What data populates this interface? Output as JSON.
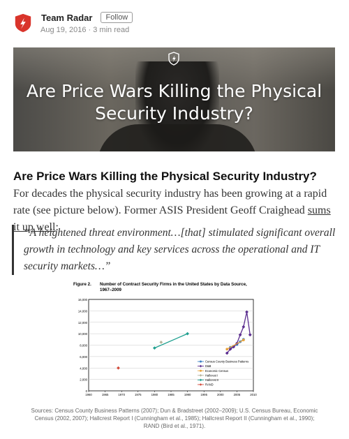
{
  "author": {
    "name": "Team Radar",
    "follow_label": "Follow",
    "date": "Aug 19, 2016",
    "read_time": "3 min read",
    "separator": "·"
  },
  "hero": {
    "title": "Are Price Wars Killing the Physical Security Industry?"
  },
  "article": {
    "title": "Are Price Wars Killing the Physical Security Industry?",
    "intro_before_link": "For decades the physical security industry has been growing at a rapid rate (see picture below). Former ASIS President Geoff Craighead ",
    "link_text": "sums it up well",
    "intro_after_link": ":",
    "quote": "“A heightened threat environment…[that] stimulated significant overall growth in technology and key services across the operational and IT security markets…”"
  },
  "figure": {
    "label": "Figure 2.",
    "title": "Number of Contract Security Firms in the United States by Data Source, 1967–2009",
    "caption": "Sources: Census County Business Patterns (2007); Dun & Bradstreet (2002–2009); U.S. Census Bureau, Economic Census (2002, 2007); Hallcrest Report I (Cunningham et al., 1985); Hallcrest Report II (Cunningham et al., 1990); RAND (Bird et al., 1971)."
  },
  "colors": {
    "brand_red": "#d9342b",
    "text_dark": "#222222"
  },
  "chart_data": {
    "type": "line",
    "title": "Number of Contract Security Firms in the United States by Data Source, 1967–2009",
    "xlim": [
      1960,
      2010
    ],
    "ylim": [
      0,
      16000
    ],
    "x_ticks": [
      "1960",
      "1965",
      "1970",
      "1975",
      "1980",
      "1985",
      "1990",
      "1995",
      "2000",
      "2005",
      "2010"
    ],
    "y_ticks": [
      "0",
      "2,000",
      "4,000",
      "6,000",
      "8,000",
      "10,000",
      "12,000",
      "14,000",
      "16,000"
    ],
    "grid": true,
    "legend_position": "bottom-right",
    "series": [
      {
        "name": "Census County Business Patterns",
        "color": "#3a7fc4",
        "marker": "circle",
        "points": [
          [
            2003,
            7600
          ],
          [
            2004,
            7800
          ],
          [
            2005,
            8100
          ],
          [
            2006,
            8600
          ],
          [
            2007,
            9000
          ]
        ]
      },
      {
        "name": "D&B",
        "color": "#5b2d8f",
        "marker": "diamond",
        "points": [
          [
            2002,
            6600
          ],
          [
            2003,
            7300
          ],
          [
            2004,
            7700
          ],
          [
            2005,
            8300
          ],
          [
            2006,
            9800
          ],
          [
            2007,
            11200
          ],
          [
            2008,
            13800
          ],
          [
            2009,
            9800
          ]
        ]
      },
      {
        "name": "Economic Census",
        "color": "#e8a33a",
        "marker": "circle",
        "points": [
          [
            2002,
            7300
          ],
          [
            2007,
            8900
          ]
        ]
      },
      {
        "name": "Hallcrest I",
        "color": "#b5b39a",
        "marker": "diamond",
        "points": [
          [
            1982,
            8500
          ]
        ]
      },
      {
        "name": "Hallcrest II",
        "color": "#20a090",
        "marker": "diamond",
        "points": [
          [
            1980,
            7500
          ],
          [
            1990,
            10000
          ]
        ]
      },
      {
        "name": "RAND",
        "color": "#d24a3a",
        "marker": "diamond",
        "points": [
          [
            1969,
            4000
          ]
        ]
      }
    ]
  }
}
